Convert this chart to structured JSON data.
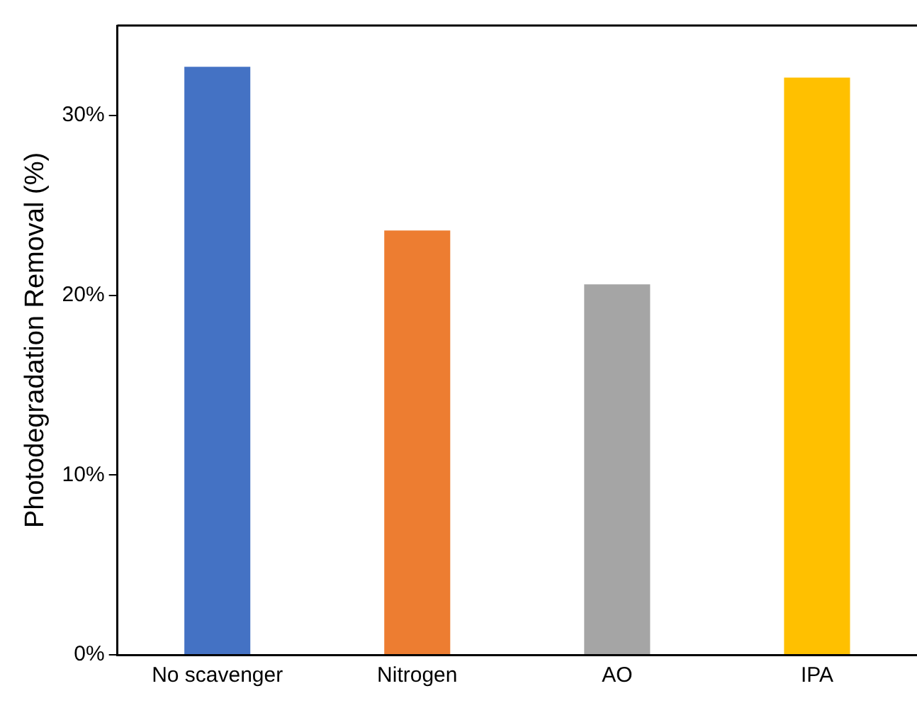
{
  "chart_data": {
    "type": "bar",
    "ylabel": "Photodegradation Removal (%)",
    "categories": [
      "No scavenger",
      "Nitrogen",
      "AO",
      "IPA"
    ],
    "values": [
      32.7,
      23.6,
      20.6,
      32.1
    ],
    "colors": [
      "#4472c4",
      "#ed7d31",
      "#a5a5a5",
      "#ffc000"
    ],
    "ylim": [
      0,
      35
    ],
    "yticks": [
      {
        "value": 0,
        "label": "0%"
      },
      {
        "value": 10,
        "label": "10%"
      },
      {
        "value": 20,
        "label": "20%"
      },
      {
        "value": 30,
        "label": "30%"
      }
    ],
    "grid": false,
    "legend": false
  }
}
